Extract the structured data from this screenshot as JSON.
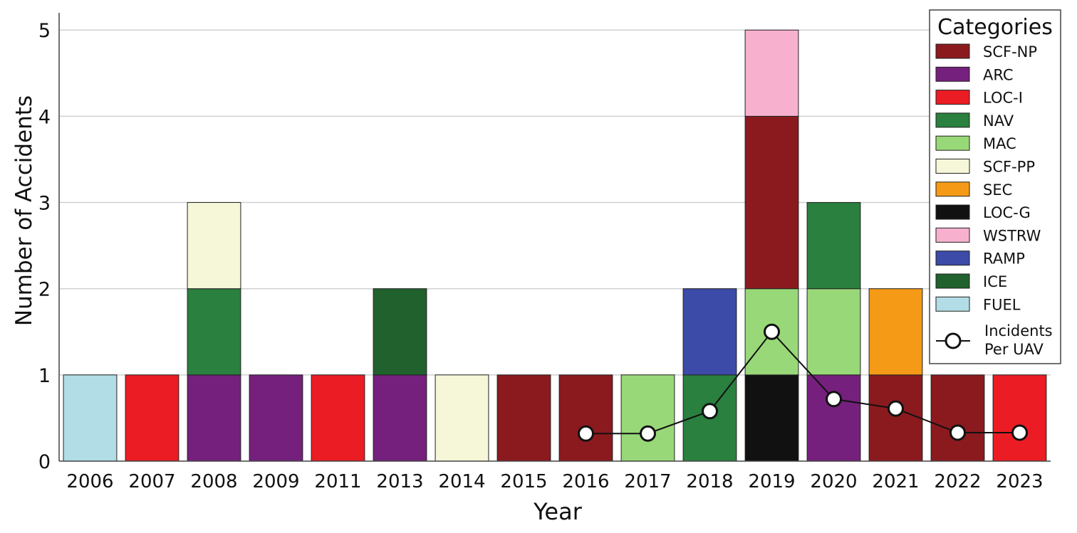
{
  "chart_data": {
    "type": "bar",
    "stacked": true,
    "xlabel": "Year",
    "ylabel": "Number of Accidents",
    "ylim": [
      0,
      5.2
    ],
    "yticks": [
      0,
      1,
      2,
      3,
      4,
      5
    ],
    "grid": "horizontal",
    "categories": [
      "2006",
      "2007",
      "2008",
      "2009",
      "2011",
      "2013",
      "2014",
      "2015",
      "2016",
      "2017",
      "2018",
      "2019",
      "2020",
      "2021",
      "2022",
      "2023"
    ],
    "legend": {
      "title": "Categories",
      "placement": "right",
      "line_label_1": "Incidents",
      "line_label_2": "Per UAV"
    },
    "series": [
      {
        "name": "SCF-NP",
        "color": "#8b1a1f",
        "values": [
          0,
          0,
          0,
          0,
          0,
          0,
          0,
          1,
          1,
          0,
          0,
          2,
          0,
          1,
          1,
          0
        ]
      },
      {
        "name": "ARC",
        "color": "#75207d",
        "values": [
          0,
          0,
          1,
          1,
          0,
          1,
          0,
          0,
          0,
          0,
          0,
          0,
          1,
          0,
          0,
          0
        ]
      },
      {
        "name": "LOC-I",
        "color": "#ec1c24",
        "values": [
          0,
          1,
          0,
          0,
          1,
          0,
          0,
          0,
          0,
          0,
          0,
          0,
          0,
          0,
          0,
          1
        ]
      },
      {
        "name": "NAV",
        "color": "#2a803e",
        "values": [
          0,
          0,
          1,
          0,
          0,
          0,
          0,
          0,
          0,
          0,
          1,
          0,
          1,
          0,
          0,
          0
        ]
      },
      {
        "name": "MAC",
        "color": "#99d878",
        "values": [
          0,
          0,
          0,
          0,
          0,
          0,
          0,
          0,
          0,
          1,
          0,
          1,
          1,
          0,
          0,
          0
        ]
      },
      {
        "name": "SCF-PP",
        "color": "#f6f6d9",
        "values": [
          0,
          0,
          1,
          0,
          0,
          0,
          1,
          0,
          0,
          0,
          0,
          0,
          0,
          0,
          0,
          0
        ]
      },
      {
        "name": "SEC",
        "color": "#f59a16",
        "values": [
          0,
          0,
          0,
          0,
          0,
          0,
          0,
          0,
          0,
          0,
          0,
          0,
          0,
          1,
          0,
          0
        ]
      },
      {
        "name": "LOC-G",
        "color": "#111111",
        "values": [
          0,
          0,
          0,
          0,
          0,
          0,
          0,
          0,
          0,
          0,
          0,
          1,
          0,
          0,
          0,
          0
        ]
      },
      {
        "name": "WSTRW",
        "color": "#f7b1cf",
        "values": [
          0,
          0,
          0,
          0,
          0,
          0,
          0,
          0,
          0,
          0,
          0,
          1,
          0,
          0,
          0,
          0
        ]
      },
      {
        "name": "RAMP",
        "color": "#3c4ba8",
        "values": [
          0,
          0,
          0,
          0,
          0,
          0,
          0,
          0,
          0,
          0,
          1,
          0,
          0,
          0,
          0,
          0
        ]
      },
      {
        "name": "ICE",
        "color": "#20612e",
        "values": [
          0,
          0,
          0,
          0,
          0,
          1,
          0,
          0,
          0,
          0,
          0,
          0,
          0,
          0,
          0,
          0
        ]
      },
      {
        "name": "FUEL",
        "color": "#b2dde6",
        "values": [
          1,
          0,
          0,
          0,
          0,
          0,
          0,
          0,
          0,
          0,
          0,
          0,
          0,
          0,
          0,
          0
        ]
      }
    ],
    "stack_order": [
      [
        "FUEL"
      ],
      [
        "LOC-I"
      ],
      [
        "ARC",
        "NAV",
        "SCF-PP"
      ],
      [
        "ARC"
      ],
      [
        "LOC-I"
      ],
      [
        "ARC",
        "ICE"
      ],
      [
        "SCF-PP"
      ],
      [
        "SCF-NP"
      ],
      [
        "SCF-NP"
      ],
      [
        "MAC"
      ],
      [
        "NAV",
        "RAMP"
      ],
      [
        "LOC-G",
        "MAC",
        "SCF-NP",
        "WSTRW"
      ],
      [
        "ARC",
        "MAC",
        "NAV"
      ],
      [
        "SCF-NP",
        "SEC"
      ],
      [
        "SCF-NP"
      ],
      [
        "LOC-I"
      ]
    ],
    "line": {
      "name": "Incidents Per UAV",
      "points": [
        {
          "x": "2016",
          "y": 0.32
        },
        {
          "x": "2017",
          "y": 0.32
        },
        {
          "x": "2018",
          "y": 0.58
        },
        {
          "x": "2019",
          "y": 1.5
        },
        {
          "x": "2020",
          "y": 0.72
        },
        {
          "x": "2021",
          "y": 0.61
        },
        {
          "x": "2022",
          "y": 0.33
        },
        {
          "x": "2023",
          "y": 0.33
        }
      ]
    }
  }
}
